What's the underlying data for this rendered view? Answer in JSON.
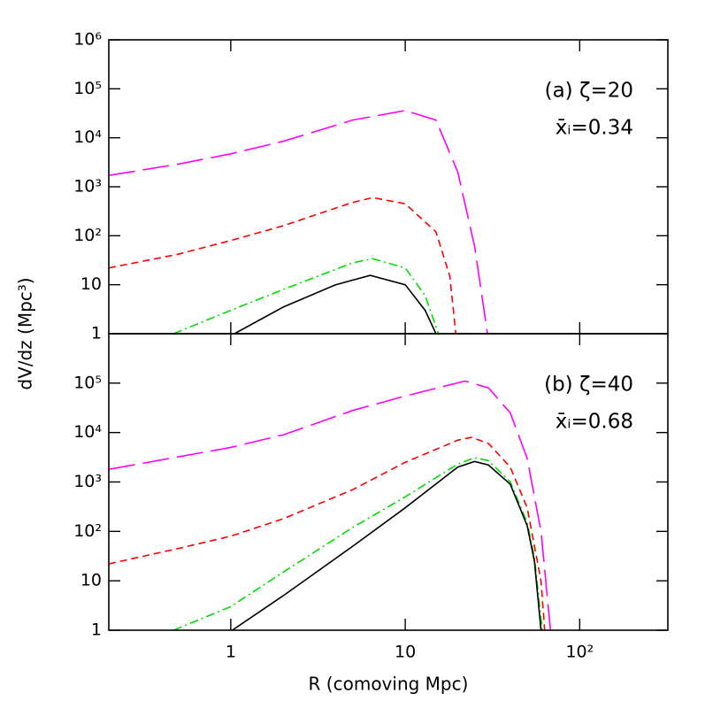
{
  "chart_data": [
    {
      "type": "line",
      "xscale": "log",
      "yscale": "log",
      "xlim": [
        0.2,
        320
      ],
      "ylim": [
        1,
        1000000
      ],
      "yticks": [
        1,
        10,
        {
          "value": 100,
          "label": "10²"
        },
        {
          "value": 1000,
          "label": "10³"
        },
        {
          "value": 10000,
          "label": "10⁴"
        },
        {
          "value": 100000,
          "label": "10⁵"
        },
        {
          "value": 1000000,
          "label": "10⁶"
        }
      ],
      "ylabel": "dV/dz (Mpc³)",
      "annotations": [
        "(a) ζ=20",
        "x̄ᵢ=0.34"
      ],
      "series": [
        {
          "color": "#ff00ff",
          "dash": "long",
          "x": [
            0.2,
            0.5,
            1,
            2,
            5,
            10,
            15,
            20,
            25,
            29.6
          ],
          "values": [
            1700,
            2900,
            4700,
            8500,
            23000,
            36000,
            23000,
            2000,
            60,
            1
          ]
        },
        {
          "color": "#ff0000",
          "dash": "short",
          "x": [
            0.2,
            0.5,
            1,
            2,
            5,
            6.5,
            10,
            15,
            18,
            19.5
          ],
          "values": [
            22,
            42,
            80,
            160,
            480,
            600,
            450,
            120,
            15,
            1
          ]
        },
        {
          "color": "#00dd00",
          "dash": "dot-dash",
          "x": [
            0.47,
            1,
            2,
            5,
            6.5,
            10,
            13,
            15.5
          ],
          "values": [
            1,
            3,
            8,
            28,
            34,
            22,
            6,
            1
          ]
        },
        {
          "color": "#000000",
          "dash": "solid",
          "x": [
            1.05,
            2,
            4,
            6.3,
            10,
            13,
            15
          ],
          "values": [
            1,
            3.5,
            10,
            15.5,
            10,
            3,
            1
          ]
        }
      ]
    },
    {
      "type": "line",
      "xscale": "log",
      "yscale": "log",
      "xlim": [
        0.2,
        320
      ],
      "ylim": [
        1,
        1000000
      ],
      "xticks": [
        1,
        10,
        {
          "value": 100,
          "label": "10²"
        }
      ],
      "yticks": [
        1,
        10,
        {
          "value": 100,
          "label": "10²"
        },
        {
          "value": 1000,
          "label": "10³"
        },
        {
          "value": 10000,
          "label": "10⁴"
        },
        {
          "value": 100000,
          "label": "10⁵"
        }
      ],
      "xlabel": "R (comoving Mpc)",
      "annotations": [
        "(b) ζ=40",
        "x̄ᵢ=0.68"
      ],
      "series": [
        {
          "color": "#ff00ff",
          "dash": "long",
          "x": [
            0.2,
            1,
            2,
            5,
            10,
            22,
            30,
            40,
            50,
            60,
            68
          ],
          "values": [
            1800,
            5000,
            9000,
            28000,
            55000,
            110000,
            80000,
            25000,
            3000,
            100,
            1
          ]
        },
        {
          "color": "#ff0000",
          "dash": "short",
          "x": [
            0.2,
            0.5,
            1,
            2,
            5,
            10,
            20,
            24,
            30,
            40,
            50,
            60,
            63
          ],
          "values": [
            22,
            45,
            80,
            180,
            700,
            2500,
            7000,
            8000,
            6000,
            2000,
            300,
            10,
            1
          ]
        },
        {
          "color": "#00dd00",
          "dash": "dot-dash",
          "x": [
            0.47,
            1,
            2,
            5,
            10,
            20,
            25,
            30,
            40,
            50,
            55,
            61
          ],
          "values": [
            1,
            3,
            15,
            120,
            500,
            2300,
            3100,
            2700,
            1000,
            150,
            30,
            1
          ]
        },
        {
          "color": "#000000",
          "dash": "solid",
          "x": [
            1.02,
            2,
            5,
            10,
            20,
            25,
            30,
            40,
            50,
            55,
            60
          ],
          "values": [
            1,
            5,
            50,
            300,
            2000,
            2600,
            2200,
            900,
            130,
            25,
            1
          ]
        }
      ]
    }
  ]
}
